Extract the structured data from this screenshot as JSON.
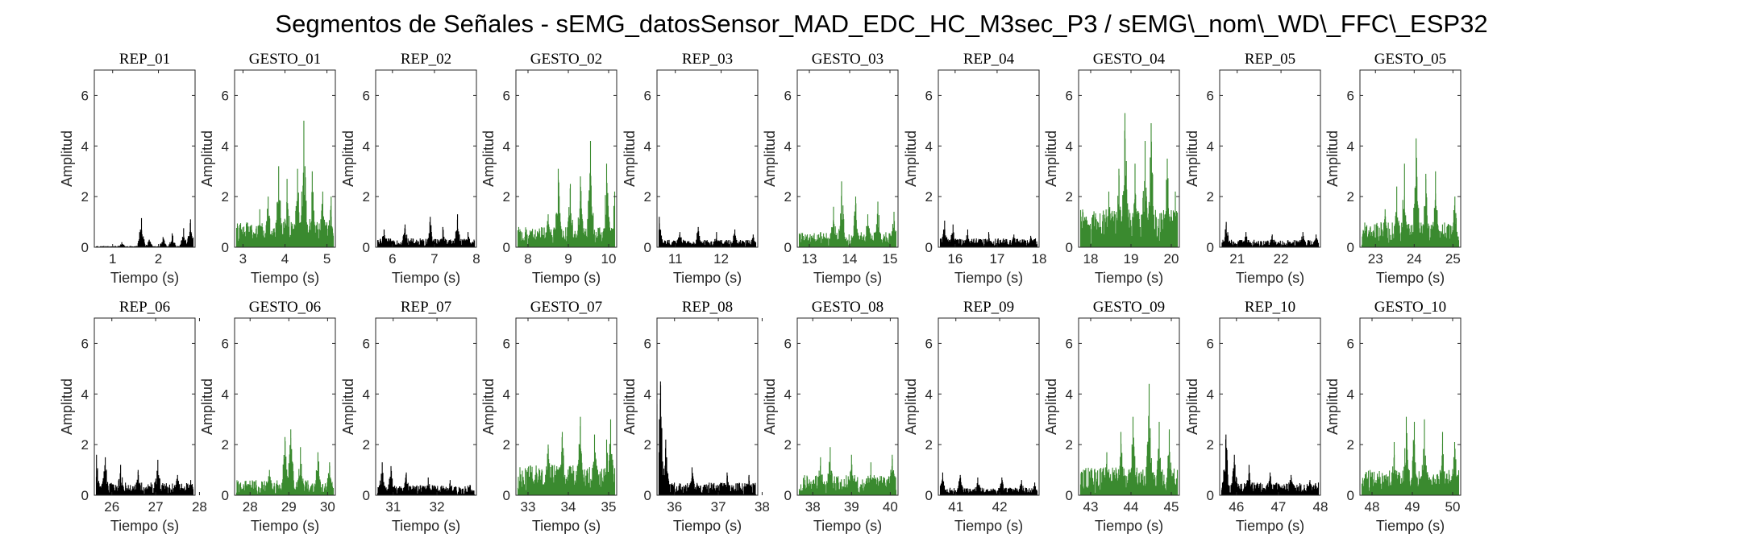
{
  "title": "Segmentos de Señales - sEMG_datosSensor_MAD_EDC_HC_M3sec_P3 / sEMG\\_nom\\_WD\\_FFC\\_ESP32",
  "colors": {
    "rep": "#000000",
    "gesto": "#3a8a2f"
  },
  "chart_data": [
    {
      "type": "area",
      "title": "REP_01",
      "xlabel": "Tiempo (s)",
      "ylabel": "Amplitud",
      "xlim": [
        0.6,
        2.8
      ],
      "ylim": [
        0,
        7
      ],
      "xticks": [
        1,
        2
      ],
      "yticks": [
        0,
        2,
        4,
        6
      ],
      "color": "#000000",
      "base_level": 0.05,
      "peaks": [
        [
          1.63,
          1.15
        ],
        [
          2.7,
          1.1
        ],
        [
          2.55,
          0.75
        ],
        [
          2.3,
          0.55
        ],
        [
          2.1,
          0.4
        ],
        [
          1.8,
          0.3
        ],
        [
          1.2,
          0.2
        ]
      ]
    },
    {
      "type": "area",
      "title": "GESTO_01",
      "xlabel": "Tiempo (s)",
      "ylabel": "Amplitud",
      "xlim": [
        2.8,
        5.2
      ],
      "ylim": [
        0,
        7
      ],
      "xticks": [
        3,
        4,
        5
      ],
      "yticks": [
        0,
        2,
        4,
        6
      ],
      "color": "#3a8a2f",
      "base_level": 1.0,
      "peaks": [
        [
          4.45,
          5.0
        ],
        [
          3.85,
          3.2
        ],
        [
          4.3,
          3.1
        ],
        [
          4.65,
          3.0
        ],
        [
          4.05,
          2.7
        ],
        [
          4.9,
          2.2
        ],
        [
          3.6,
          2.0
        ],
        [
          5.1,
          2.0
        ],
        [
          3.4,
          1.5
        ],
        [
          2.95,
          0.7
        ]
      ]
    },
    {
      "type": "area",
      "title": "REP_02",
      "xlabel": "Tiempo (s)",
      "ylabel": "Amplitud",
      "xlim": [
        5.6,
        8.0
      ],
      "ylim": [
        0,
        7
      ],
      "xticks": [
        6,
        7,
        8
      ],
      "yticks": [
        0,
        2,
        4,
        6
      ],
      "color": "#000000",
      "base_level": 0.35,
      "peaks": [
        [
          7.55,
          1.3
        ],
        [
          6.9,
          1.2
        ],
        [
          6.3,
          0.9
        ],
        [
          7.2,
          0.8
        ],
        [
          5.8,
          0.7
        ],
        [
          7.8,
          0.6
        ]
      ]
    },
    {
      "type": "area",
      "title": "GESTO_02",
      "xlabel": "Tiempo (s)",
      "ylabel": "Amplitud",
      "xlim": [
        7.7,
        10.2
      ],
      "ylim": [
        0,
        7
      ],
      "xticks": [
        8,
        9,
        10
      ],
      "yticks": [
        0,
        2,
        4,
        6
      ],
      "color": "#3a8a2f",
      "base_level": 0.8,
      "peaks": [
        [
          9.55,
          4.2
        ],
        [
          9.95,
          3.3
        ],
        [
          8.75,
          3.1
        ],
        [
          9.3,
          2.8
        ],
        [
          9.05,
          2.5
        ],
        [
          10.15,
          2.2
        ],
        [
          8.5,
          1.3
        ],
        [
          8.1,
          0.6
        ]
      ]
    },
    {
      "type": "area",
      "title": "REP_03",
      "xlabel": "Tiempo (s)",
      "ylabel": "Amplitud",
      "xlim": [
        10.6,
        12.8
      ],
      "ylim": [
        0,
        7
      ],
      "xticks": [
        11,
        12
      ],
      "yticks": [
        0,
        2,
        4,
        6
      ],
      "color": "#000000",
      "base_level": 0.3,
      "peaks": [
        [
          10.65,
          1.2
        ],
        [
          11.5,
          0.8
        ],
        [
          12.3,
          0.7
        ],
        [
          11.9,
          0.6
        ],
        [
          11.1,
          0.6
        ],
        [
          12.7,
          0.5
        ]
      ]
    },
    {
      "type": "area",
      "title": "GESTO_03",
      "xlabel": "Tiempo (s)",
      "ylabel": "Amplitud",
      "xlim": [
        12.7,
        15.2
      ],
      "ylim": [
        0,
        7
      ],
      "xticks": [
        13,
        14,
        15
      ],
      "yticks": [
        0,
        2,
        4,
        6
      ],
      "color": "#3a8a2f",
      "base_level": 0.6,
      "peaks": [
        [
          13.8,
          2.6
        ],
        [
          14.15,
          2.0
        ],
        [
          14.7,
          1.8
        ],
        [
          13.6,
          1.6
        ],
        [
          15.1,
          1.4
        ],
        [
          14.45,
          1.3
        ],
        [
          12.9,
          0.5
        ]
      ]
    },
    {
      "type": "area",
      "title": "REP_04",
      "xlabel": "Tiempo (s)",
      "ylabel": "Amplitud",
      "xlim": [
        15.6,
        18.0
      ],
      "ylim": [
        0,
        7
      ],
      "xticks": [
        16,
        17,
        18
      ],
      "yticks": [
        0,
        2,
        4,
        6
      ],
      "color": "#000000",
      "base_level": 0.35,
      "peaks": [
        [
          15.75,
          1.05
        ],
        [
          15.95,
          0.9
        ],
        [
          16.3,
          0.7
        ],
        [
          16.8,
          0.6
        ],
        [
          17.4,
          0.5
        ],
        [
          17.8,
          0.45
        ]
      ]
    },
    {
      "type": "area",
      "title": "GESTO_04",
      "xlabel": "Tiempo (s)",
      "ylabel": "Amplitud",
      "xlim": [
        17.7,
        20.2
      ],
      "ylim": [
        0,
        7
      ],
      "xticks": [
        18,
        19,
        20
      ],
      "yticks": [
        0,
        2,
        4,
        6
      ],
      "color": "#3a8a2f",
      "base_level": 1.5,
      "peaks": [
        [
          18.85,
          5.3
        ],
        [
          19.5,
          4.9
        ],
        [
          19.35,
          4.2
        ],
        [
          19.9,
          3.5
        ],
        [
          18.7,
          3.1
        ],
        [
          19.1,
          3.3
        ],
        [
          18.45,
          2.2
        ],
        [
          20.1,
          2.2
        ],
        [
          18.1,
          0.8
        ]
      ]
    },
    {
      "type": "area",
      "title": "REP_05",
      "xlabel": "Tiempo (s)",
      "ylabel": "Amplitud",
      "xlim": [
        20.6,
        22.9
      ],
      "ylim": [
        0,
        7
      ],
      "xticks": [
        21,
        22
      ],
      "yticks": [
        0,
        2,
        4,
        6
      ],
      "color": "#000000",
      "base_level": 0.3,
      "peaks": [
        [
          20.75,
          1.0
        ],
        [
          21.2,
          0.6
        ],
        [
          21.8,
          0.5
        ],
        [
          22.5,
          0.6
        ],
        [
          22.8,
          0.5
        ]
      ]
    },
    {
      "type": "area",
      "title": "GESTO_05",
      "xlabel": "Tiempo (s)",
      "ylabel": "Amplitud",
      "xlim": [
        22.6,
        25.2
      ],
      "ylim": [
        0,
        7
      ],
      "xticks": [
        23,
        24,
        25
      ],
      "yticks": [
        0,
        2,
        4,
        6
      ],
      "color": "#3a8a2f",
      "base_level": 1.0,
      "peaks": [
        [
          24.05,
          4.3
        ],
        [
          23.75,
          3.3
        ],
        [
          24.55,
          3.0
        ],
        [
          24.3,
          2.9
        ],
        [
          23.55,
          2.4
        ],
        [
          25.05,
          2.0
        ],
        [
          23.25,
          1.5
        ],
        [
          22.9,
          0.6
        ]
      ]
    },
    {
      "type": "area",
      "title": "REP_06",
      "xlabel": "Tiempo (s)",
      "ylabel": "Amplitud",
      "xlim": [
        25.6,
        27.9
      ],
      "ylim": [
        0,
        7
      ],
      "xticks": [
        26,
        27,
        28
      ],
      "yticks": [
        0,
        2,
        4,
        6
      ],
      "color": "#000000",
      "base_level": 0.5,
      "peaks": [
        [
          25.65,
          1.6
        ],
        [
          25.85,
          1.5
        ],
        [
          26.2,
          1.2
        ],
        [
          26.6,
          1.0
        ],
        [
          27.05,
          1.4
        ],
        [
          27.5,
          0.8
        ],
        [
          27.8,
          0.6
        ]
      ]
    },
    {
      "type": "area",
      "title": "GESTO_06",
      "xlabel": "Tiempo (s)",
      "ylabel": "Amplitud",
      "xlim": [
        27.6,
        30.2
      ],
      "ylim": [
        0,
        7
      ],
      "xticks": [
        28,
        29,
        30
      ],
      "yticks": [
        0,
        2,
        4,
        6
      ],
      "color": "#3a8a2f",
      "base_level": 0.6,
      "peaks": [
        [
          29.05,
          2.6
        ],
        [
          28.9,
          2.3
        ],
        [
          29.3,
          1.9
        ],
        [
          29.75,
          1.7
        ],
        [
          30.05,
          1.3
        ],
        [
          28.5,
          1.0
        ],
        [
          27.9,
          0.4
        ]
      ]
    },
    {
      "type": "area",
      "title": "REP_07",
      "xlabel": "Tiempo (s)",
      "ylabel": "Amplitud",
      "xlim": [
        30.6,
        32.9
      ],
      "ylim": [
        0,
        7
      ],
      "xticks": [
        31,
        32
      ],
      "yticks": [
        0,
        2,
        4,
        6
      ],
      "color": "#000000",
      "base_level": 0.4,
      "peaks": [
        [
          30.75,
          1.3
        ],
        [
          30.95,
          1.15
        ],
        [
          31.3,
          0.9
        ],
        [
          31.8,
          0.7
        ],
        [
          32.3,
          0.6
        ],
        [
          32.75,
          0.4
        ]
      ]
    },
    {
      "type": "area",
      "title": "GESTO_07",
      "xlabel": "Tiempo (s)",
      "ylabel": "Amplitud",
      "xlim": [
        32.7,
        35.2
      ],
      "ylim": [
        0,
        7
      ],
      "xticks": [
        33,
        34,
        35
      ],
      "yticks": [
        0,
        2,
        4,
        6
      ],
      "color": "#3a8a2f",
      "base_level": 1.2,
      "peaks": [
        [
          34.3,
          3.1
        ],
        [
          35.05,
          3.0
        ],
        [
          33.85,
          2.5
        ],
        [
          34.65,
          2.4
        ],
        [
          33.5,
          2.0
        ],
        [
          34.95,
          2.2
        ],
        [
          33.2,
          1.0
        ],
        [
          32.85,
          0.3
        ]
      ]
    },
    {
      "type": "area",
      "title": "REP_08",
      "xlabel": "Tiempo (s)",
      "ylabel": "Amplitud",
      "xlim": [
        35.6,
        37.9
      ],
      "ylim": [
        0,
        7
      ],
      "xticks": [
        36,
        37,
        38
      ],
      "yticks": [
        0,
        2,
        4,
        6
      ],
      "color": "#000000",
      "base_level": 0.5,
      "peaks": [
        [
          35.68,
          4.5
        ],
        [
          35.6,
          3.6
        ],
        [
          35.8,
          2.2
        ],
        [
          36.4,
          1.1
        ],
        [
          37.2,
          0.9
        ],
        [
          37.7,
          0.8
        ]
      ]
    },
    {
      "type": "area",
      "title": "GESTO_08",
      "xlabel": "Tiempo (s)",
      "ylabel": "Amplitud",
      "xlim": [
        37.6,
        40.2
      ],
      "ylim": [
        0,
        7
      ],
      "xticks": [
        38,
        39,
        40
      ],
      "yticks": [
        0,
        2,
        4,
        6
      ],
      "color": "#3a8a2f",
      "base_level": 0.8,
      "peaks": [
        [
          38.45,
          1.9
        ],
        [
          39.0,
          1.6
        ],
        [
          38.2,
          1.5
        ],
        [
          39.5,
          1.3
        ],
        [
          40.05,
          1.6
        ],
        [
          37.8,
          0.6
        ]
      ]
    },
    {
      "type": "area",
      "title": "REP_09",
      "xlabel": "Tiempo (s)",
      "ylabel": "Amplitud",
      "xlim": [
        40.6,
        42.9
      ],
      "ylim": [
        0,
        7
      ],
      "xticks": [
        41,
        42
      ],
      "yticks": [
        0,
        2,
        4,
        6
      ],
      "color": "#000000",
      "base_level": 0.3,
      "peaks": [
        [
          40.7,
          0.9
        ],
        [
          41.1,
          0.8
        ],
        [
          41.5,
          0.7
        ],
        [
          42.05,
          0.7
        ],
        [
          42.5,
          0.6
        ],
        [
          42.8,
          0.5
        ]
      ]
    },
    {
      "type": "area",
      "title": "GESTO_09",
      "xlabel": "Tiempo (s)",
      "ylabel": "Amplitud",
      "xlim": [
        42.7,
        45.2
      ],
      "ylim": [
        0,
        7
      ],
      "xticks": [
        43,
        44,
        45
      ],
      "yticks": [
        0,
        2,
        4,
        6
      ],
      "color": "#3a8a2f",
      "base_level": 1.1,
      "peaks": [
        [
          44.45,
          4.4
        ],
        [
          44.05,
          3.1
        ],
        [
          44.7,
          2.9
        ],
        [
          43.75,
          2.5
        ],
        [
          44.95,
          2.6
        ],
        [
          43.4,
          1.7
        ],
        [
          43.0,
          0.8
        ]
      ]
    },
    {
      "type": "area",
      "title": "REP_10",
      "xlabel": "Tiempo (s)",
      "ylabel": "Amplitud",
      "xlim": [
        45.6,
        48.0
      ],
      "ylim": [
        0,
        7
      ],
      "xticks": [
        46,
        47,
        48
      ],
      "yticks": [
        0,
        2,
        4,
        6
      ],
      "color": "#000000",
      "base_level": 0.5,
      "peaks": [
        [
          45.75,
          2.4
        ],
        [
          45.95,
          1.6
        ],
        [
          46.3,
          1.2
        ],
        [
          46.8,
          0.9
        ],
        [
          47.3,
          0.8
        ],
        [
          47.75,
          0.6
        ]
      ]
    },
    {
      "type": "area",
      "title": "GESTO_10",
      "xlabel": "Tiempo (s)",
      "ylabel": "Amplitud",
      "xlim": [
        47.7,
        50.2
      ],
      "ylim": [
        0,
        7
      ],
      "xticks": [
        48,
        49,
        50
      ],
      "yticks": [
        0,
        2,
        4,
        6
      ],
      "color": "#3a8a2f",
      "base_level": 1.0,
      "peaks": [
        [
          48.85,
          3.1
        ],
        [
          49.3,
          3.0
        ],
        [
          49.05,
          2.9
        ],
        [
          49.75,
          2.5
        ],
        [
          48.55,
          2.1
        ],
        [
          50.05,
          2.1
        ],
        [
          48.1,
          0.6
        ]
      ]
    }
  ]
}
